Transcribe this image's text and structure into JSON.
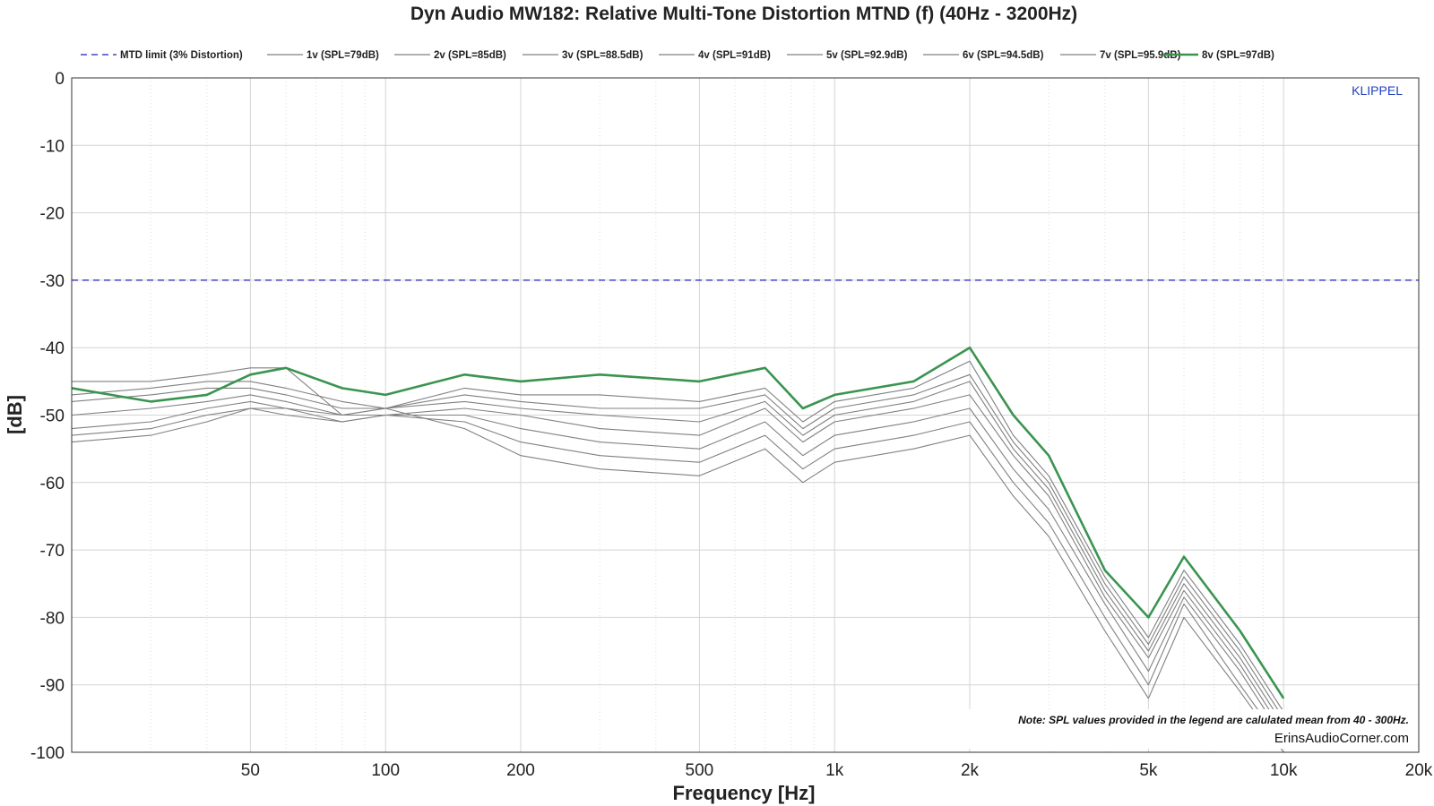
{
  "chart_data": {
    "type": "line",
    "title": "Dyn Audio MW182: Relative Multi-Tone Distortion MTND (f) (40Hz - 3200Hz)",
    "xlabel": "Frequency [Hz]",
    "ylabel": "[dB]",
    "xscale": "log",
    "xlim": [
      20,
      20000
    ],
    "ylim": [
      -100,
      0
    ],
    "grid": true,
    "legend_position": "top",
    "x_tick_values": [
      50,
      100,
      200,
      500,
      1000,
      2000,
      5000,
      10000,
      20000
    ],
    "x_tick_labels": [
      "50",
      "100",
      "200",
      "500",
      "1k",
      "2k",
      "5k",
      "10k",
      "20k"
    ],
    "y_tick_values": [
      0,
      -10,
      -20,
      -30,
      -40,
      -50,
      -60,
      -70,
      -80,
      -90,
      -100
    ],
    "y_tick_labels": [
      "0",
      "-10",
      "-20",
      "-30",
      "-40",
      "-50",
      "-60",
      "-70",
      "-80",
      "-90",
      "-100"
    ],
    "x": [
      20,
      30,
      40,
      50,
      60,
      80,
      100,
      150,
      200,
      300,
      500,
      700,
      850,
      1000,
      1500,
      2000,
      2500,
      3000,
      4000,
      5000,
      6000,
      8000,
      10000
    ],
    "series": [
      {
        "name": "MTD limit (3% Distortion)",
        "color": "#1f1fbf",
        "style": "dashed",
        "x": [
          20,
          20000
        ],
        "values": [
          -30,
          -30
        ]
      },
      {
        "name": "1v (SPL=79dB)",
        "color": "#808080",
        "values": [
          -54,
          -53,
          -51,
          -49,
          -49,
          -50,
          -49,
          -52,
          -56,
          -58,
          -59,
          -55,
          -60,
          -57,
          -55,
          -53,
          -62,
          -68,
          -82,
          -92,
          -80,
          -91,
          -100
        ]
      },
      {
        "name": "2v (SPL=85dB)",
        "color": "#808080",
        "values": [
          -53,
          -52,
          -50,
          -49,
          -50,
          -51,
          -50,
          -51,
          -54,
          -56,
          -57,
          -53,
          -58,
          -55,
          -53,
          -51,
          -60,
          -66,
          -80,
          -90,
          -78,
          -90,
          -99
        ]
      },
      {
        "name": "3v (SPL=88.5dB)",
        "color": "#808080",
        "values": [
          -52,
          -51,
          -49,
          -48,
          -49,
          -51,
          -50,
          -50,
          -52,
          -54,
          -55,
          -51,
          -56,
          -53,
          -51,
          -49,
          -58,
          -64,
          -78,
          -88,
          -77,
          -88,
          -98
        ]
      },
      {
        "name": "4v (SPL=91dB)",
        "color": "#808080",
        "values": [
          -50,
          -49,
          -48,
          -47,
          -48,
          -50,
          -50,
          -49,
          -50,
          -52,
          -53,
          -49,
          -54,
          -51,
          -49,
          -47,
          -56,
          -62,
          -77,
          -86,
          -76,
          -87,
          -97
        ]
      },
      {
        "name": "5v (SPL=92.9dB)",
        "color": "#808080",
        "values": [
          -48,
          -47,
          -46,
          -46,
          -47,
          -49,
          -49,
          -48,
          -49,
          -50,
          -51,
          -48,
          -53,
          -50,
          -48,
          -45,
          -55,
          -61,
          -76,
          -85,
          -75,
          -86,
          -96
        ]
      },
      {
        "name": "6v (SPL=94.5dB)",
        "color": "#808080",
        "values": [
          -47,
          -46,
          -45,
          -45,
          -46,
          -48,
          -49,
          -47,
          -48,
          -49,
          -49,
          -47,
          -52,
          -49,
          -47,
          -44,
          -54,
          -60,
          -75,
          -84,
          -74,
          -85,
          -95
        ]
      },
      {
        "name": "7v (SPL=95.9dB)",
        "color": "#808080",
        "values": [
          -45,
          -45,
          -44,
          -43,
          -43,
          -50,
          -49,
          -46,
          -47,
          -47,
          -48,
          -46,
          -51,
          -48,
          -46,
          -42,
          -53,
          -59,
          -74,
          -83,
          -73,
          -84,
          -94
        ]
      },
      {
        "name": "8v (SPL=97dB)",
        "color": "#3a9450",
        "style": "bold",
        "values": [
          -46,
          -48,
          -47,
          -44,
          -43,
          -46,
          -47,
          -44,
          -45,
          -44,
          -45,
          -43,
          -49,
          -47,
          -45,
          -40,
          -50,
          -56,
          -73,
          -80,
          -71,
          -82,
          -92
        ]
      }
    ],
    "annotations": [
      "KLIPPEL",
      "Note: SPL values provided in the legend are calulated mean from 40 - 300Hz.",
      "ErinsAudioCorner.com"
    ]
  }
}
